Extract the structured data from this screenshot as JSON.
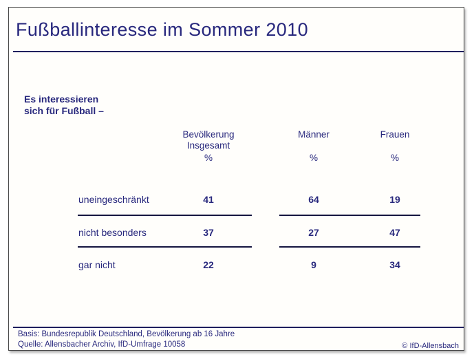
{
  "header": {
    "title": "Fußballinteresse im Sommer 2010"
  },
  "intro": {
    "line1": "Es interessieren",
    "line2": "sich für Fußball –"
  },
  "table": {
    "columns": [
      {
        "line1": "Bevölkerung",
        "line2": "Insgesamt",
        "unit": "%"
      },
      {
        "line1": "Männer",
        "line2": "",
        "unit": "%"
      },
      {
        "line1": "Frauen",
        "line2": "",
        "unit": "%"
      }
    ],
    "rows": [
      {
        "label": "uneingeschränkt",
        "values": [
          "41",
          "64",
          "19"
        ]
      },
      {
        "label": "nicht besonders",
        "values": [
          "37",
          "27",
          "47"
        ]
      },
      {
        "label": "gar nicht",
        "values": [
          "22",
          "9",
          "34"
        ]
      }
    ]
  },
  "footer": {
    "basis": "Basis: Bundesrepublik Deutschland, Bevölkerung ab 16 Jahre",
    "source": "Quelle: Allensbacher Archiv, IfD-Umfrage 10058",
    "copyright": "© IfD-Allensbach"
  },
  "colors": {
    "accent_navy": "#28287d",
    "rule_navy": "#1f1f5e",
    "row_rule": "#15153f",
    "frame_border": "#474747",
    "slide_background": "#fffefb"
  },
  "chart_data": {
    "type": "table",
    "title": "Fußballinteresse im Sommer 2010",
    "subtitle": "Es interessieren sich für Fußball –",
    "unit": "%",
    "categories": [
      "uneingeschränkt",
      "nicht besonders",
      "gar nicht"
    ],
    "series": [
      {
        "name": "Bevölkerung insgesamt",
        "values": [
          41,
          37,
          22
        ]
      },
      {
        "name": "Männer",
        "values": [
          64,
          27,
          9
        ]
      },
      {
        "name": "Frauen",
        "values": [
          19,
          47,
          34
        ]
      }
    ],
    "source": "Allensbacher Archiv, IfD-Umfrage 10058",
    "basis": "Bundesrepublik Deutschland, Bevölkerung ab 16 Jahre"
  }
}
